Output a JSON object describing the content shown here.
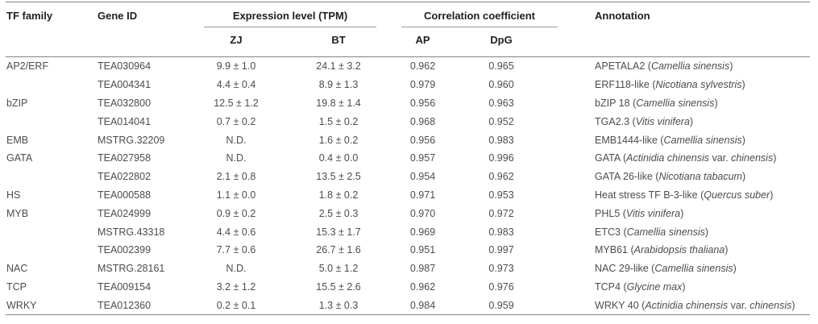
{
  "colors": {
    "rule": "#848484",
    "group_rule": "#9a9a9a",
    "header_text": "#1f1f1f",
    "body_text": "#4c4c4c",
    "background": "#ffffff"
  },
  "table": {
    "headers": {
      "tf_family": "TF family",
      "gene_id": "Gene ID",
      "expression_group": "Expression level (TPM)",
      "correlation_group": "Correlation coefficient",
      "zj": "ZJ",
      "bt": "BT",
      "ap": "AP",
      "dpg": "DpG",
      "annotation": "Annotation"
    },
    "rows": [
      {
        "tf_family": "AP2/ERF",
        "gene_id": "TEA030964",
        "zj": "9.9 ± 1.0",
        "bt": "24.1 ± 3.2",
        "ap": "0.962",
        "dpg": "0.965",
        "annotation": [
          {
            "t": "APETALA2 (",
            "i": false
          },
          {
            "t": "Camellia sinensis",
            "i": true
          },
          {
            "t": ")",
            "i": false
          }
        ]
      },
      {
        "tf_family": "",
        "gene_id": "TEA004341",
        "zj": "4.4 ± 0.4",
        "bt": "8.9 ± 1.3",
        "ap": "0.979",
        "dpg": "0.960",
        "annotation": [
          {
            "t": "ERF118-like (",
            "i": false
          },
          {
            "t": "Nicotiana sylvestris",
            "i": true
          },
          {
            "t": ")",
            "i": false
          }
        ]
      },
      {
        "tf_family": "bZIP",
        "gene_id": "TEA032800",
        "zj": "12.5 ± 1.2",
        "bt": "19.8 ± 1.4",
        "ap": "0.956",
        "dpg": "0.963",
        "annotation": [
          {
            "t": "bZIP 18 (",
            "i": false
          },
          {
            "t": "Camellia sinensis",
            "i": true
          },
          {
            "t": ")",
            "i": false
          }
        ]
      },
      {
        "tf_family": "",
        "gene_id": "TEA014041",
        "zj": "0.7 ± 0.2",
        "bt": "1.5 ± 0.2",
        "ap": "0.968",
        "dpg": "0.952",
        "annotation": [
          {
            "t": "TGA2.3 (",
            "i": false
          },
          {
            "t": "Vitis vinifera",
            "i": true
          },
          {
            "t": ")",
            "i": false
          }
        ]
      },
      {
        "tf_family": "EMB",
        "gene_id": "MSTRG.32209",
        "zj": "N.D.",
        "bt": "1.6 ± 0.2",
        "ap": "0.956",
        "dpg": "0.983",
        "annotation": [
          {
            "t": "EMB1444-like (",
            "i": false
          },
          {
            "t": "Camellia sinensis",
            "i": true
          },
          {
            "t": ")",
            "i": false
          }
        ]
      },
      {
        "tf_family": "GATA",
        "gene_id": "TEA027958",
        "zj": "N.D.",
        "bt": "0.4 ± 0.0",
        "ap": "0.957",
        "dpg": "0.996",
        "annotation": [
          {
            "t": "GATA (",
            "i": false
          },
          {
            "t": "Actinidia chinensis",
            "i": true
          },
          {
            "t": " var. ",
            "i": false
          },
          {
            "t": "chinensis",
            "i": true
          },
          {
            "t": ")",
            "i": false
          }
        ]
      },
      {
        "tf_family": "",
        "gene_id": "TEA022802",
        "zj": "2.1 ± 0.8",
        "bt": "13.5 ± 2.5",
        "ap": "0.954",
        "dpg": "0.962",
        "annotation": [
          {
            "t": "GATA 26-like (",
            "i": false
          },
          {
            "t": "Nicotiana tabacum",
            "i": true
          },
          {
            "t": ")",
            "i": false
          }
        ]
      },
      {
        "tf_family": "HS",
        "gene_id": "TEA000588",
        "zj": "1.1 ± 0.0",
        "bt": "1.8 ± 0.2",
        "ap": "0.971",
        "dpg": "0.953",
        "annotation": [
          {
            "t": "Heat stress TF B-3-like (",
            "i": false
          },
          {
            "t": "Quercus suber",
            "i": true
          },
          {
            "t": ")",
            "i": false
          }
        ]
      },
      {
        "tf_family": "MYB",
        "gene_id": "TEA024999",
        "zj": "0.9 ± 0.2",
        "bt": "2.5 ± 0.3",
        "ap": "0.970",
        "dpg": "0.972",
        "annotation": [
          {
            "t": "PHL5 (",
            "i": false
          },
          {
            "t": "Vitis vinifera",
            "i": true
          },
          {
            "t": ")",
            "i": false
          }
        ]
      },
      {
        "tf_family": "",
        "gene_id": "MSTRG.43318",
        "zj": "4.4 ± 0.6",
        "bt": "15.3 ± 1.7",
        "ap": "0.969",
        "dpg": "0.983",
        "annotation": [
          {
            "t": "ETC3 (",
            "i": false
          },
          {
            "t": "Camellia sinensis",
            "i": true
          },
          {
            "t": ")",
            "i": false
          }
        ]
      },
      {
        "tf_family": "",
        "gene_id": "TEA002399",
        "zj": "7.7 ± 0.6",
        "bt": "26.7 ± 1.6",
        "ap": "0.951",
        "dpg": "0.997",
        "annotation": [
          {
            "t": "MYB61 (",
            "i": false
          },
          {
            "t": "Arabidopsis thaliana",
            "i": true
          },
          {
            "t": ")",
            "i": false
          }
        ]
      },
      {
        "tf_family": "NAC",
        "gene_id": "MSTRG.28161",
        "zj": "N.D.",
        "bt": "5.0 ± 1.2",
        "ap": "0.987",
        "dpg": "0.973",
        "annotation": [
          {
            "t": "NAC 29-like (",
            "i": false
          },
          {
            "t": "Camellia sinensis",
            "i": true
          },
          {
            "t": ")",
            "i": false
          }
        ]
      },
      {
        "tf_family": "TCP",
        "gene_id": "TEA009154",
        "zj": "3.2 ± 1.2",
        "bt": "15.5 ± 2.6",
        "ap": "0.962",
        "dpg": "0.976",
        "annotation": [
          {
            "t": "TCP4 (",
            "i": false
          },
          {
            "t": "Glycine max",
            "i": true
          },
          {
            "t": ")",
            "i": false
          }
        ]
      },
      {
        "tf_family": "WRKY",
        "gene_id": "TEA012360",
        "zj": "0.2 ± 0.1",
        "bt": "1.3 ± 0.3",
        "ap": "0.984",
        "dpg": "0.959",
        "annotation": [
          {
            "t": "WRKY 40 (",
            "i": false
          },
          {
            "t": "Actinidia chinensis",
            "i": true
          },
          {
            "t": " var. ",
            "i": false
          },
          {
            "t": "chinensis",
            "i": true
          },
          {
            "t": ")",
            "i": false
          }
        ]
      }
    ]
  }
}
